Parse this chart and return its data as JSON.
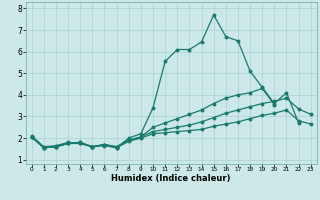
{
  "xlabel": "Humidex (Indice chaleur)",
  "ylabel": "",
  "bg_color": "#cce8e8",
  "grid_color": "#aad0d0",
  "line_color": "#1a7a6e",
  "xlim": [
    -0.5,
    23.5
  ],
  "ylim": [
    0.8,
    8.3
  ],
  "xticks": [
    0,
    1,
    2,
    3,
    4,
    5,
    6,
    7,
    8,
    9,
    10,
    11,
    12,
    13,
    14,
    15,
    16,
    17,
    18,
    19,
    20,
    21,
    22,
    23
  ],
  "yticks": [
    1,
    2,
    3,
    4,
    5,
    6,
    7,
    8
  ],
  "line1_x": [
    0,
    1,
    2,
    3,
    4,
    5,
    6,
    7,
    8,
    9,
    10,
    11,
    12,
    13,
    14,
    15,
    16,
    17,
    18,
    19,
    20,
    21,
    22
  ],
  "line1_y": [
    2.1,
    1.6,
    1.65,
    1.8,
    1.75,
    1.6,
    1.7,
    1.55,
    2.0,
    2.2,
    3.4,
    5.55,
    6.1,
    6.1,
    6.45,
    7.7,
    6.7,
    6.5,
    5.1,
    4.35,
    3.6,
    4.1,
    2.7
  ],
  "line2_x": [
    0,
    1,
    2,
    3,
    4,
    5,
    6,
    7,
    8,
    9,
    10,
    11,
    12,
    13,
    14,
    15,
    16,
    17,
    18,
    19,
    20,
    21,
    22,
    23
  ],
  "line2_y": [
    2.05,
    1.55,
    1.6,
    1.75,
    1.75,
    1.6,
    1.65,
    1.55,
    1.85,
    2.0,
    2.2,
    2.25,
    2.3,
    2.35,
    2.4,
    2.55,
    2.65,
    2.75,
    2.9,
    3.05,
    3.15,
    3.3,
    2.8,
    2.65
  ],
  "line3_x": [
    0,
    1,
    2,
    3,
    4,
    5,
    6,
    7,
    8,
    9,
    10,
    11,
    12,
    13,
    14,
    15,
    16,
    17,
    18,
    19,
    20,
    21,
    22,
    23
  ],
  "line3_y": [
    2.05,
    1.55,
    1.6,
    1.75,
    1.8,
    1.6,
    1.7,
    1.6,
    1.9,
    2.05,
    2.3,
    2.4,
    2.5,
    2.6,
    2.75,
    2.95,
    3.15,
    3.3,
    3.45,
    3.6,
    3.7,
    3.85,
    3.35,
    3.1
  ],
  "line4_x": [
    0,
    1,
    2,
    3,
    4,
    5,
    6,
    7,
    8,
    9,
    10,
    11,
    12,
    13,
    14,
    15,
    16,
    17,
    18,
    19,
    20
  ],
  "line4_y": [
    2.05,
    1.55,
    1.6,
    1.75,
    1.8,
    1.6,
    1.7,
    1.6,
    1.9,
    2.05,
    2.5,
    2.7,
    2.9,
    3.1,
    3.3,
    3.6,
    3.85,
    4.0,
    4.1,
    4.3,
    3.55
  ]
}
